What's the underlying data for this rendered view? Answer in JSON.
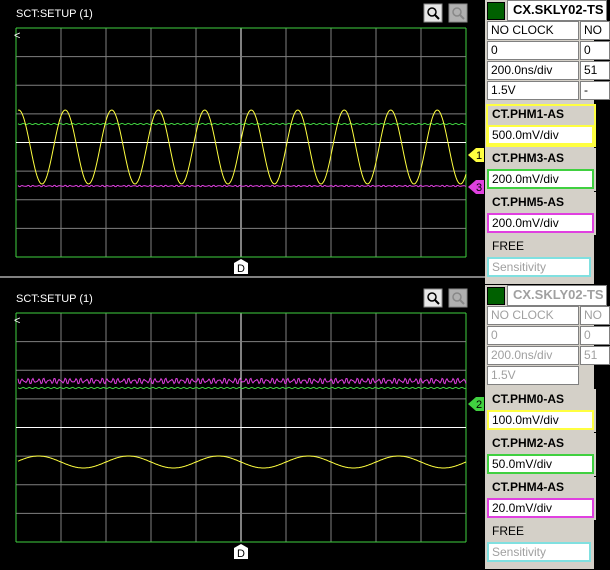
{
  "panels": [
    {
      "title": "SCT:SETUP (1)",
      "source": "CX.SKLY02-TS",
      "active": true,
      "info": [
        [
          "NO CLOCK",
          "NO"
        ],
        [
          "0",
          "0"
        ],
        [
          "200.0ns/div",
          "51"
        ],
        [
          "1.5V",
          "-"
        ]
      ],
      "channels": [
        {
          "name": "CT.PHM1-AS",
          "scale": "500.0mV/div",
          "color": "#ffff40"
        },
        {
          "name": "CT.PHM3-AS",
          "scale": "200.0mV/div",
          "color": "#40d040"
        },
        {
          "name": "CT.PHM5-AS",
          "scale": "200.0mV/div",
          "color": "#e040e0"
        }
      ],
      "free": "FREE",
      "sensitivity": "Sensitivity",
      "markers": [
        {
          "label": "1",
          "color": "#ffff40"
        },
        {
          "label": "3",
          "color": "#e040e0"
        }
      ],
      "trigger": "D"
    },
    {
      "title": "SCT:SETUP (1)",
      "source": "CX.SKLY02-TS",
      "active": false,
      "info": [
        [
          "NO CLOCK",
          "NO"
        ],
        [
          "0",
          "0"
        ],
        [
          "200.0ns/div",
          "51"
        ],
        [
          "1.5V"
        ]
      ],
      "channels": [
        {
          "name": "CT.PHM0-AS",
          "scale": "100.0mV/div",
          "color": "#ffff40"
        },
        {
          "name": "CT.PHM2-AS",
          "scale": "50.0mV/div",
          "color": "#40d040"
        },
        {
          "name": "CT.PHM4-AS",
          "scale": "20.0mV/div",
          "color": "#e040e0"
        }
      ],
      "free": "FREE",
      "sensitivity": "Sensitivity",
      "markers": [
        {
          "label": "2",
          "color": "#40d040"
        }
      ],
      "trigger": "D"
    }
  ]
}
